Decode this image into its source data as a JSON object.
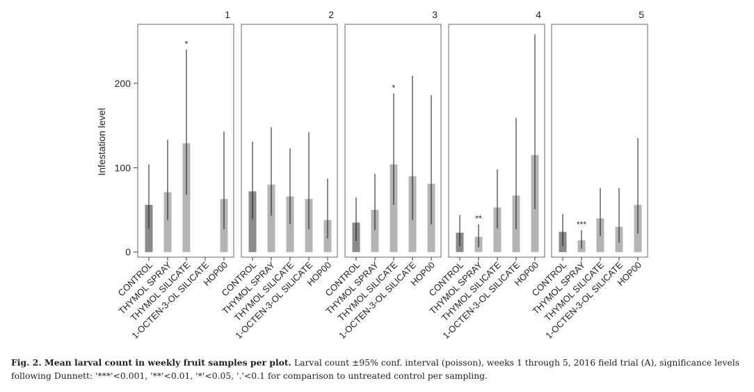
{
  "chart_data": {
    "type": "bar",
    "ylabel": "Infestation level",
    "ylim": [
      -6,
      270
    ],
    "yticks": [
      0,
      100,
      200
    ],
    "categories": [
      "CONTROL",
      "THYMOL SPRAY",
      "THYMOL SILICATE",
      "1-OCTEN-3-OL SILICATE",
      "HOP00"
    ],
    "bar_colors": [
      "#8a8a8a",
      "#b4b4b4",
      "#b4b4b4",
      "#b4b4b4",
      "#b4b4b4"
    ],
    "panels": [
      {
        "title": "1",
        "values": [
          56,
          71,
          129,
          null,
          63
        ],
        "ci_low": [
          28,
          38,
          68,
          null,
          27
        ],
        "ci_high": [
          104,
          133,
          240,
          null,
          143
        ],
        "significance": [
          "",
          "",
          "*",
          "",
          ""
        ]
      },
      {
        "title": "2",
        "values": [
          72,
          80,
          66,
          63,
          38
        ],
        "ci_low": [
          39,
          43,
          33,
          27,
          16
        ],
        "ci_high": [
          131,
          148,
          123,
          142,
          87
        ],
        "significance": [
          "",
          "",
          "",
          "",
          ""
        ]
      },
      {
        "title": "3",
        "values": [
          35,
          50,
          104,
          90,
          81
        ],
        "ci_low": [
          13,
          26,
          56,
          38,
          33
        ],
        "ci_high": [
          65,
          93,
          188,
          209,
          186
        ],
        "significance": [
          "",
          "",
          "*",
          "",
          ""
        ]
      },
      {
        "title": "4",
        "values": [
          23,
          18,
          53,
          67,
          115
        ],
        "ci_low": [
          7,
          6,
          28,
          27,
          51
        ],
        "ci_high": [
          44,
          33,
          98,
          159,
          258
        ],
        "significance": [
          "",
          "**",
          "",
          "",
          ""
        ]
      },
      {
        "title": "5",
        "values": [
          24,
          14,
          40,
          30,
          56
        ],
        "ci_low": [
          7,
          4,
          19,
          11,
          22
        ],
        "ci_high": [
          45,
          26,
          76,
          76,
          135
        ],
        "significance": [
          "",
          "***",
          "",
          "",
          ""
        ]
      }
    ]
  },
  "caption": {
    "title": "Fig. 2.  Mean larval count in weekly fruit samples per plot.",
    "text": " Larval count ±95% conf. interval (poisson), weeks 1 through 5, 2016 field trial (A), significance levels following Dunnett: '***'<0.001, '**'<0.01, '*'<0.05, '.'<0.1 for comparison to untreated control per sampling."
  }
}
